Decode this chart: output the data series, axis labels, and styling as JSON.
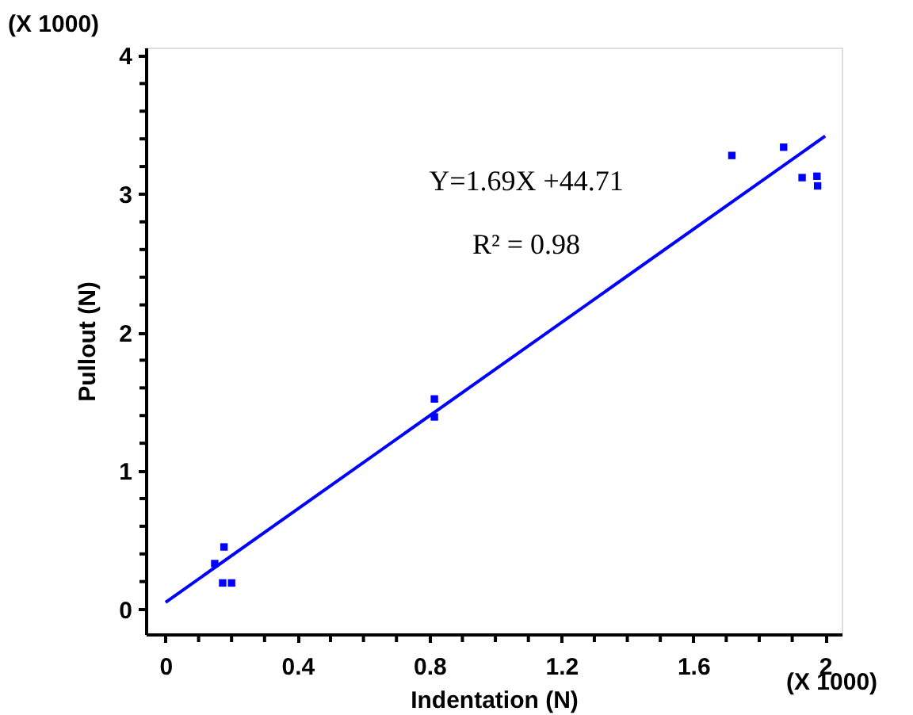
{
  "chart_data": {
    "type": "scatter",
    "xlabel": "Indentation (N)",
    "ylabel": "Pullout (N)",
    "annotations": [
      "Y=1.69X +44.71",
      "R² = 0.98",
      "(X 1000)",
      "(X 1000)"
    ],
    "series": [
      {
        "color": "#0000ff",
        "marker": "square",
        "x": [
          0.149,
          0.177,
          0.173,
          0.2,
          0.815,
          0.815,
          1.717,
          1.874,
          1.93,
          1.975,
          1.977
        ],
        "values": [
          0.33,
          0.45,
          0.19,
          0.19,
          1.52,
          1.39,
          3.28,
          3.34,
          3.12,
          3.13,
          3.06
        ]
      },
      {
        "type": "line",
        "color": "#0000ff",
        "marker": "none",
        "line_style": "solid",
        "x": [
          0,
          2.0
        ],
        "values": [
          0.05,
          3.42
        ]
      }
    ],
    "xlim": [
      -0.06,
      2.05
    ],
    "ylim": [
      -0.18,
      4.06
    ],
    "xticks": [
      0,
      {
        "value": 0.1,
        "label": null
      },
      {
        "value": 0.2,
        "label": null
      },
      {
        "value": 0.3,
        "label": null
      },
      0.4,
      {
        "value": 0.5,
        "label": null
      },
      {
        "value": 0.6,
        "label": null
      },
      {
        "value": 0.7,
        "label": null
      },
      0.8,
      {
        "value": 0.9,
        "label": null
      },
      {
        "value": 1.0,
        "label": null
      },
      {
        "value": 1.1,
        "label": null
      },
      1.2,
      {
        "value": 1.3,
        "label": null
      },
      {
        "value": 1.4,
        "label": null
      },
      {
        "value": 1.5,
        "label": null
      },
      1.6,
      {
        "value": 1.7,
        "label": null
      },
      {
        "value": 1.8,
        "label": null
      },
      {
        "value": 1.9,
        "label": null
      },
      2
    ],
    "yticks": [
      0,
      {
        "value": 0.2,
        "label": null
      },
      {
        "value": 0.4,
        "label": null
      },
      {
        "value": 0.6,
        "label": null
      },
      {
        "value": 0.8,
        "label": null
      },
      1,
      {
        "value": 1.2,
        "label": null
      },
      {
        "value": 1.4,
        "label": null
      },
      {
        "value": 1.6,
        "label": null
      },
      {
        "value": 1.8,
        "label": null
      },
      2,
      {
        "value": 2.2,
        "label": null
      },
      {
        "value": 2.4,
        "label": null
      },
      {
        "value": 2.6,
        "label": null
      },
      {
        "value": 2.8,
        "label": null
      },
      3,
      {
        "value": 3.2,
        "label": null
      },
      {
        "value": 3.4,
        "label": null
      },
      {
        "value": 3.6,
        "label": null
      },
      {
        "value": 3.8,
        "label": null
      },
      4
    ],
    "grid": false
  }
}
